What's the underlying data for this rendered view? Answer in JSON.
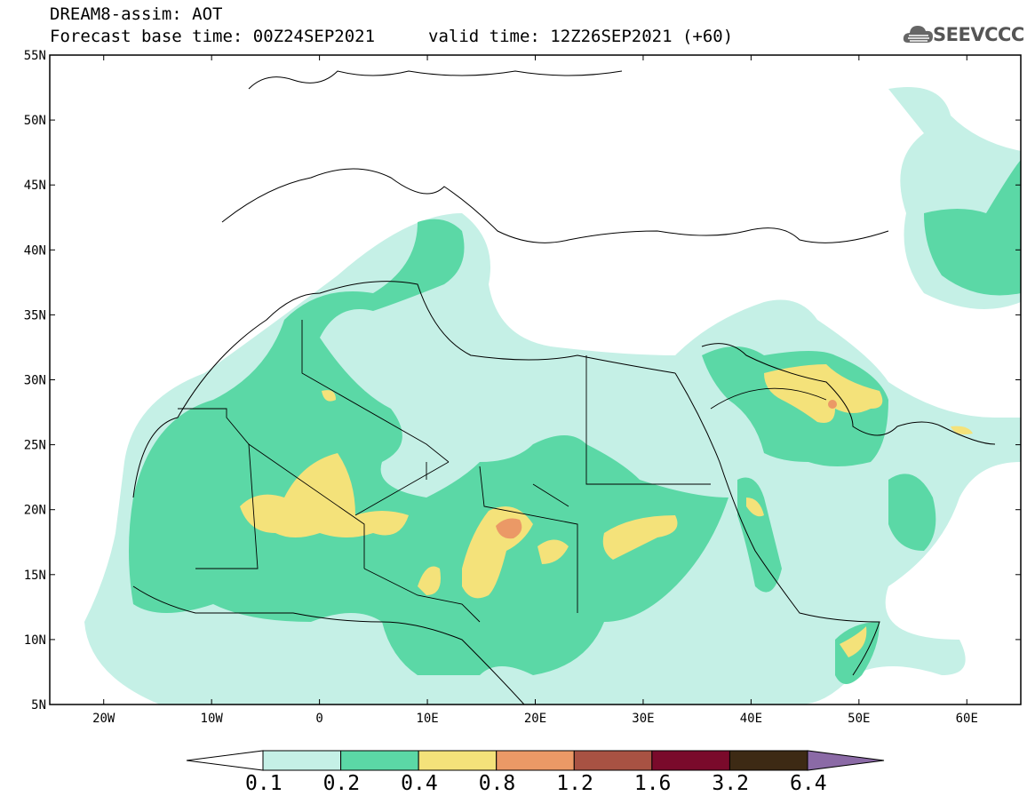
{
  "header": {
    "line1": "DREAM8-assim: AOT",
    "line2": "Forecast base time: 00Z24SEP2021",
    "line3": "valid time: 12Z26SEP2021 (+60)"
  },
  "logo": {
    "text": "SEEVCCC",
    "icon": "cloud-icon"
  },
  "map": {
    "lon_range": [
      -25,
      65
    ],
    "lat_range": [
      5,
      55
    ],
    "lat_labels": [
      "55N",
      "50N",
      "45N",
      "40N",
      "35N",
      "30N",
      "25N",
      "20N",
      "15N",
      "10N",
      "5N"
    ],
    "lon_labels": [
      "20W",
      "10W",
      "0",
      "10E",
      "20E",
      "30E",
      "40E",
      "50E",
      "60E"
    ]
  },
  "colorbar": {
    "colors": [
      "#ffffff",
      "#c5f0e6",
      "#5bd8a6",
      "#f4e27a",
      "#eb9966",
      "#a85243",
      "#7a0a2b",
      "#3d2a14",
      "#8b6aa6"
    ],
    "labels": [
      "0.1",
      "0.2",
      "0.4",
      "0.8",
      "1.2",
      "1.6",
      "3.2",
      "6.4"
    ]
  }
}
